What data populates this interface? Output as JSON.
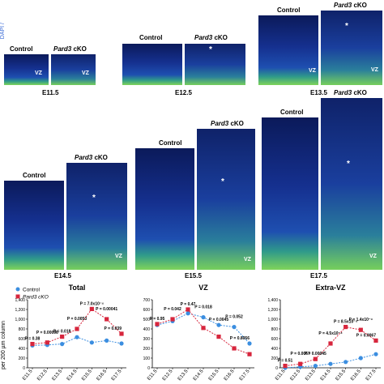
{
  "micro": {
    "control_label": "Control",
    "cko_label": "Pard3 cKO",
    "cko_gene": "Pard3",
    "cko_suffix": " cKO",
    "vz_label": "VZ",
    "star": "*",
    "side_text": "DAPI /",
    "ages": [
      "E11.5",
      "E12.5",
      "E13.5",
      "E14.5",
      "E15.5",
      "E17.5"
    ]
  },
  "legend": {
    "control": "Control",
    "cko": "Pard3 cKO",
    "control_color": "#3b8ee0",
    "cko_color": "#d7263d"
  },
  "ylabel": "per 200 µm column",
  "chart_data": [
    {
      "type": "line",
      "title": "Total",
      "categories": [
        "E11.5",
        "E12.5",
        "E13.5",
        "E14.5",
        "E15.5",
        "E16.5",
        "E17.5"
      ],
      "ylim": [
        0,
        1400
      ],
      "yticks": [
        "0",
        "200",
        "400",
        "600",
        "800",
        "1,000",
        "1,200",
        "1,400"
      ],
      "series": [
        {
          "name": "Control",
          "values": [
            460,
            470,
            490,
            630,
            520,
            560,
            500
          ]
        },
        {
          "name": "Pard3 cKO",
          "values": [
            490,
            520,
            640,
            800,
            1210,
            1000,
            700
          ]
        }
      ],
      "annotations": [
        "P = 0.38",
        "P = 0.00096",
        "P = 0.018",
        "P = 0.0053",
        "P = 7.0x10⁻⁴",
        "P = 0.00041",
        "P = 0.039"
      ]
    },
    {
      "type": "line",
      "title": "VZ",
      "categories": [
        "E11.5",
        "E12.5",
        "E13.5",
        "E14.5",
        "E15.5",
        "E16.5",
        "E17.5"
      ],
      "ylim": [
        0,
        700
      ],
      "yticks": [
        "0",
        "100",
        "200",
        "300",
        "400",
        "500",
        "600",
        "700"
      ],
      "series": [
        {
          "name": "Control",
          "values": [
            440,
            480,
            560,
            520,
            440,
            420,
            250
          ]
        },
        {
          "name": "Pard3 cKO",
          "values": [
            450,
            500,
            600,
            410,
            320,
            200,
            140
          ]
        }
      ],
      "annotations": [
        "P = 0.95",
        "P = 0.042",
        "P = 0.47",
        "P = 0.018",
        "P = 0.0045",
        "P = 0.052",
        "P = 0.8056"
      ]
    },
    {
      "type": "line",
      "title": "Extra-VZ",
      "categories": [
        "E11.5",
        "E12.5",
        "E13.5",
        "E14.5",
        "E15.5",
        "E16.5",
        "E17.5"
      ],
      "ylim": [
        0,
        1400
      ],
      "yticks": [
        "0",
        "200",
        "400",
        "600",
        "800",
        "1,000",
        "1,200",
        "1,400"
      ],
      "series": [
        {
          "name": "Control",
          "values": [
            0,
            20,
            40,
            80,
            120,
            200,
            280
          ]
        },
        {
          "name": "Pard3 cKO",
          "values": [
            40,
            80,
            180,
            500,
            840,
            780,
            560
          ]
        }
      ],
      "annotations": [
        "P = 0.51",
        "P = 0.0067",
        "P = 0.00045",
        "P = 4.5x10⁻⁴",
        "P = 8.5x10⁻⁴",
        "P = 1.4x10⁻⁴",
        "P = 0.0067"
      ]
    }
  ]
}
